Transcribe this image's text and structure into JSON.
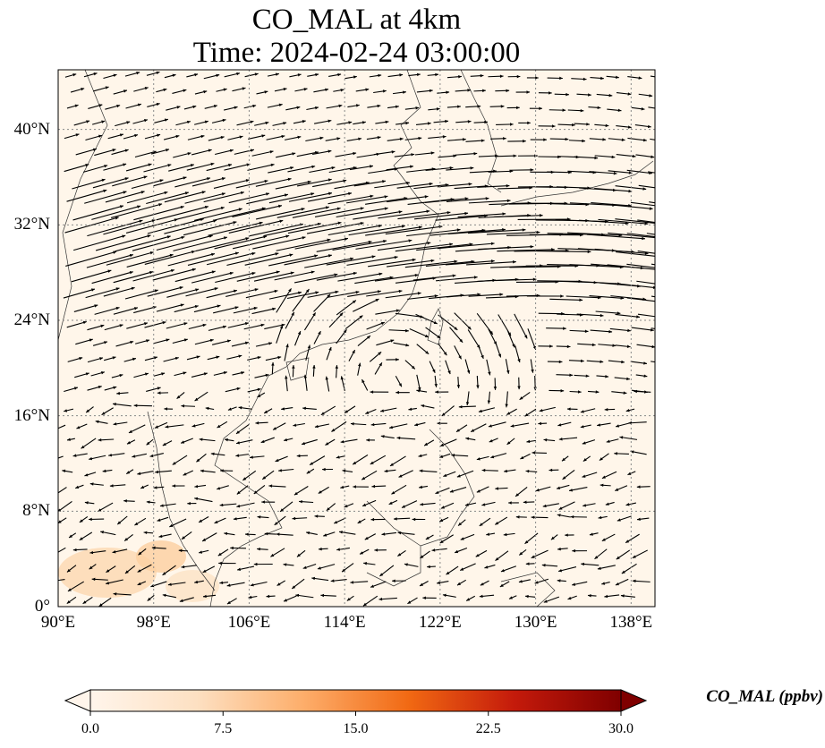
{
  "title_line1": "CO_MAL at 4km",
  "title_line2": "Time: 2024-02-24 03:00:00",
  "map": {
    "lon_range": [
      90,
      140
    ],
    "lat_range": [
      0,
      45
    ],
    "lat_ticks": [
      {
        "value": 0,
        "label": "0°"
      },
      {
        "value": 8,
        "label": "8°N"
      },
      {
        "value": 16,
        "label": "16°N"
      },
      {
        "value": 24,
        "label": "24°N"
      },
      {
        "value": 32,
        "label": "32°N"
      },
      {
        "value": 40,
        "label": "40°N"
      }
    ],
    "lon_ticks": [
      {
        "value": 90,
        "label": "90°E"
      },
      {
        "value": 98,
        "label": "98°E"
      },
      {
        "value": 106,
        "label": "106°E"
      },
      {
        "value": 114,
        "label": "114°E"
      },
      {
        "value": 122,
        "label": "122°E"
      },
      {
        "value": 130,
        "label": "130°E"
      },
      {
        "value": 138,
        "label": "138°E"
      }
    ],
    "gridlines": true
  },
  "colorbar": {
    "label": "CO_MAL (ppbv)",
    "min": 0,
    "max": 30,
    "ticks": [
      {
        "value": 0,
        "label": "0.0"
      },
      {
        "value": 7.5,
        "label": "7.5"
      },
      {
        "value": 15,
        "label": "15.0"
      },
      {
        "value": 22.5,
        "label": "22.5"
      },
      {
        "value": 30,
        "label": "30.0"
      }
    ],
    "colors": [
      "#fff5eb",
      "#fdd3a7",
      "#fd9243",
      "#e2540e",
      "#a63603",
      "#7f0000"
    ],
    "extend": "both"
  },
  "colors": {
    "background_field": "#fff6ea",
    "high_field": "#fdd8b0",
    "arrow": "#000000",
    "grid": "#888888"
  }
}
